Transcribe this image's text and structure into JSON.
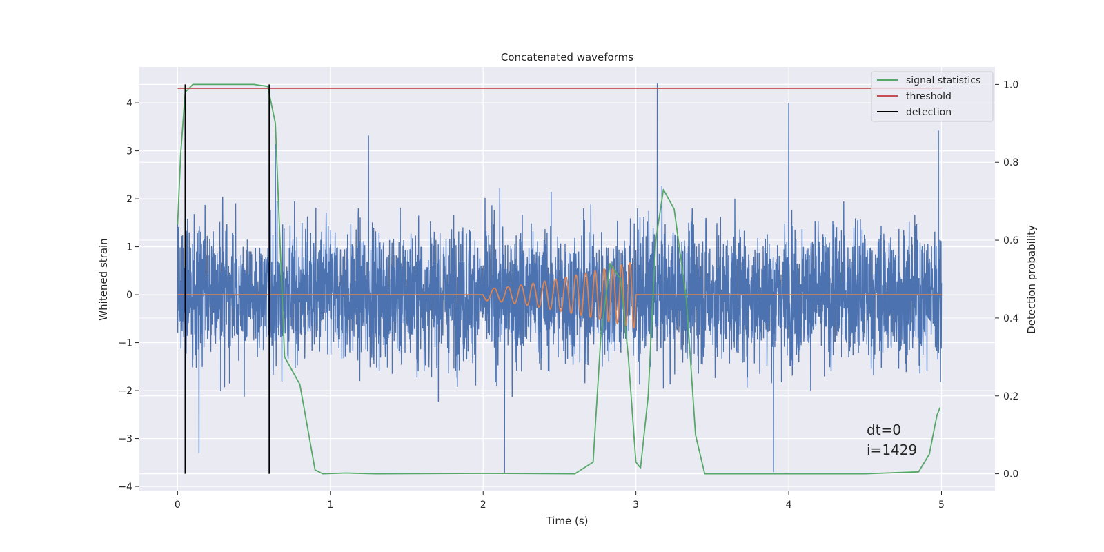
{
  "chart_data": {
    "type": "line",
    "title": "Concatenated waveforms",
    "xlabel": "Time (s)",
    "ylabel_left": "Whitened strain",
    "ylabel_right": "Detection probability",
    "xlim": [
      -0.25,
      5.35
    ],
    "ylim_left": [
      -4.1,
      4.75
    ],
    "ylim_right": [
      -0.045,
      1.045
    ],
    "x_ticks": [
      0,
      1,
      2,
      3,
      4,
      5
    ],
    "y_ticks_left": [
      -4,
      -3,
      -2,
      -1,
      0,
      1,
      2,
      3,
      4
    ],
    "y_ticks_right": [
      0.0,
      0.2,
      0.4,
      0.6,
      0.8,
      1.0
    ],
    "grid": true,
    "legend_position": "top-right",
    "legend": [
      "signal statistics",
      "threshold",
      "detection"
    ],
    "colors": {
      "strain": "#4c72b0",
      "injection": "#dd8452",
      "signal_statistics": "#55a868",
      "threshold": "#c44e52",
      "detection": "#000000",
      "background": "#eaeaf2",
      "grid": "#ffffff"
    },
    "series": [
      {
        "name": "strain",
        "axis": "left",
        "style": "noise",
        "x_range": [
          0,
          5
        ],
        "approx_envelope": [
          -2.3,
          2.6
        ],
        "notable_peaks": [
          {
            "x": 3.14,
            "y": 4.4
          },
          {
            "x": 4.0,
            "y": 4.0
          },
          {
            "x": 4.98,
            "y": 3.42
          },
          {
            "x": 0.64,
            "y": 3.15
          },
          {
            "x": 1.25,
            "y": 3.32
          },
          {
            "x": 2.14,
            "y": -3.72
          },
          {
            "x": 3.9,
            "y": -3.7
          },
          {
            "x": 0.05,
            "y": -2.6
          },
          {
            "x": 0.14,
            "y": -3.3
          }
        ]
      },
      {
        "name": "injected waveform",
        "axis": "left",
        "style": "chirp",
        "flat_value": 0,
        "chirp_start": 2.0,
        "chirp_end": 3.0,
        "amplitude_start": 0.12,
        "amplitude_end": 0.7
      },
      {
        "name": "signal statistics",
        "axis": "right",
        "x": [
          0.0,
          0.02,
          0.05,
          0.1,
          0.5,
          0.59,
          0.64,
          0.7,
          0.8,
          0.85,
          0.9,
          0.95,
          1.1,
          1.3,
          2.0,
          2.6,
          2.72,
          2.77,
          2.83,
          2.9,
          2.95,
          3.0,
          3.03,
          3.08,
          3.13,
          3.18,
          3.25,
          3.33,
          3.39,
          3.45,
          3.7,
          4.5,
          4.85,
          4.92,
          4.97,
          4.99
        ],
        "y": [
          0.64,
          0.82,
          0.98,
          1.0,
          1.0,
          0.995,
          0.9,
          0.3,
          0.23,
          0.12,
          0.01,
          0.0,
          0.002,
          0.0,
          0.001,
          0.0,
          0.03,
          0.35,
          0.54,
          0.5,
          0.3,
          0.03,
          0.015,
          0.2,
          0.6,
          0.73,
          0.68,
          0.45,
          0.1,
          0.0,
          0.0,
          0.0,
          0.005,
          0.05,
          0.15,
          0.17
        ]
      },
      {
        "name": "threshold",
        "axis": "right",
        "x": [
          0,
          5
        ],
        "y": [
          0.99,
          0.99
        ]
      },
      {
        "name": "detection",
        "axis": "right",
        "vertical_lines_x": [
          0.05,
          0.6
        ],
        "y_from": 0.0,
        "y_to": 1.0
      }
    ],
    "annotations": [
      "dt=0",
      "i=1429"
    ]
  }
}
